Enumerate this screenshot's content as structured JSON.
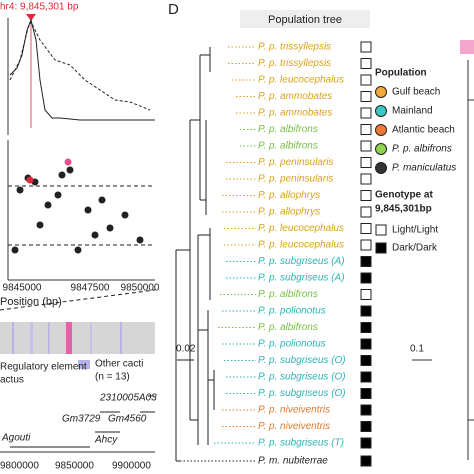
{
  "left_panel": {
    "marker_label": "hr4: 9,845,301 bp",
    "x_ticks": [
      "9845000",
      "9847500",
      "9850000"
    ],
    "x_axis_label": "Position (bp)",
    "track_legend": [
      "Regulatory element",
      "actus",
      "Other cacti",
      "(n = 13)"
    ],
    "genes": [
      "2310005A03",
      "Gm3729",
      "Gm4560",
      "Agouti",
      "Ahcy"
    ],
    "bottom_ticks": [
      "9800000",
      "9850000",
      "9900000"
    ]
  },
  "panel_d": {
    "letter": "D",
    "title": "Population tree",
    "scale_bar": "0.02",
    "tips": [
      {
        "label": "P. p. trissyllepsis",
        "color": "#d9a21b",
        "genotype_fill": "#ffffff"
      },
      {
        "label": "P. p. trissyllepsis",
        "color": "#d9a21b",
        "genotype_fill": "#ffffff"
      },
      {
        "label": "P. p. leucocephalus",
        "color": "#d9a21b",
        "genotype_fill": "#ffffff"
      },
      {
        "label": "P. p. ammobates",
        "color": "#d9a21b",
        "genotype_fill": "#ffffff"
      },
      {
        "label": "P. p. ammobates",
        "color": "#d9a21b",
        "genotype_fill": "#ffffff"
      },
      {
        "label": "P. p. albifrons",
        "color": "#77c043",
        "genotype_fill": "#ffffff"
      },
      {
        "label": "P. p. albifrons",
        "color": "#77c043",
        "genotype_fill": "#ffffff"
      },
      {
        "label": "P. p. peninsularis",
        "color": "#d9a21b",
        "genotype_fill": "#ffffff"
      },
      {
        "label": "P. p. peninsularis",
        "color": "#d9a21b",
        "genotype_fill": "#ffffff"
      },
      {
        "label": "P. p. allophrys",
        "color": "#d9a21b",
        "genotype_fill": "#ffffff"
      },
      {
        "label": "P. p. allophrys",
        "color": "#d9a21b",
        "genotype_fill": "#ffffff"
      },
      {
        "label": "P. p. leucocephalus",
        "color": "#d9a21b",
        "genotype_fill": "#ffffff"
      },
      {
        "label": "P. p. leucocephalus",
        "color": "#d9a21b",
        "genotype_fill": "#ffffff"
      },
      {
        "label": "P. p. subgriseus (A)",
        "color": "#2bb5b5",
        "genotype_fill": "#000000"
      },
      {
        "label": "P. p. subgriseus (A)",
        "color": "#2bb5b5",
        "genotype_fill": "#000000"
      },
      {
        "label": "P. p. albifrons",
        "color": "#77c043",
        "genotype_fill": "#ffffff"
      },
      {
        "label": "P. p. polionotus",
        "color": "#2bb5b5",
        "genotype_fill": "#000000"
      },
      {
        "label": "P. p. albifrons",
        "color": "#77c043",
        "genotype_fill": "#000000"
      },
      {
        "label": "P. p. polionotus",
        "color": "#2bb5b5",
        "genotype_fill": "#000000"
      },
      {
        "label": "P. p. subgriseus (O)",
        "color": "#2bb5b5",
        "genotype_fill": "#000000"
      },
      {
        "label": "P. p. subgriseus (O)",
        "color": "#2bb5b5",
        "genotype_fill": "#000000"
      },
      {
        "label": "P. p. subgriseus (O)",
        "color": "#2bb5b5",
        "genotype_fill": "#000000"
      },
      {
        "label": "P. p. niveiventris",
        "color": "#e07a2e",
        "genotype_fill": "#000000"
      },
      {
        "label": "P. p. niveiventris",
        "color": "#e07a2e",
        "genotype_fill": "#000000"
      },
      {
        "label": "P. p. subgriseus (T)",
        "color": "#2bb5b5",
        "genotype_fill": "#000000"
      },
      {
        "label": "P. m. nubiterrae",
        "color": "#222222",
        "genotype_fill": "#000000"
      }
    ],
    "population_legend": {
      "title": "Population",
      "items": [
        {
          "label": "Gulf beach",
          "color": "#f2a93b"
        },
        {
          "label": "Mainland",
          "color": "#3ec7c2"
        },
        {
          "label": "Atlantic beach",
          "color": "#ee7a3a"
        },
        {
          "label": "P. p. albifrons",
          "color": "#8fd24b"
        },
        {
          "label": "P. maniculatus",
          "color": "#333333"
        }
      ]
    },
    "genotype_legend": {
      "title": "Genotype at",
      "subtitle": "9,845,301bp",
      "items": [
        {
          "label": "Light/Light",
          "fill": "#ffffff"
        },
        {
          "label": "Dark/Dark",
          "fill": "#000000"
        }
      ]
    },
    "second_scale_bar": "0.1"
  }
}
